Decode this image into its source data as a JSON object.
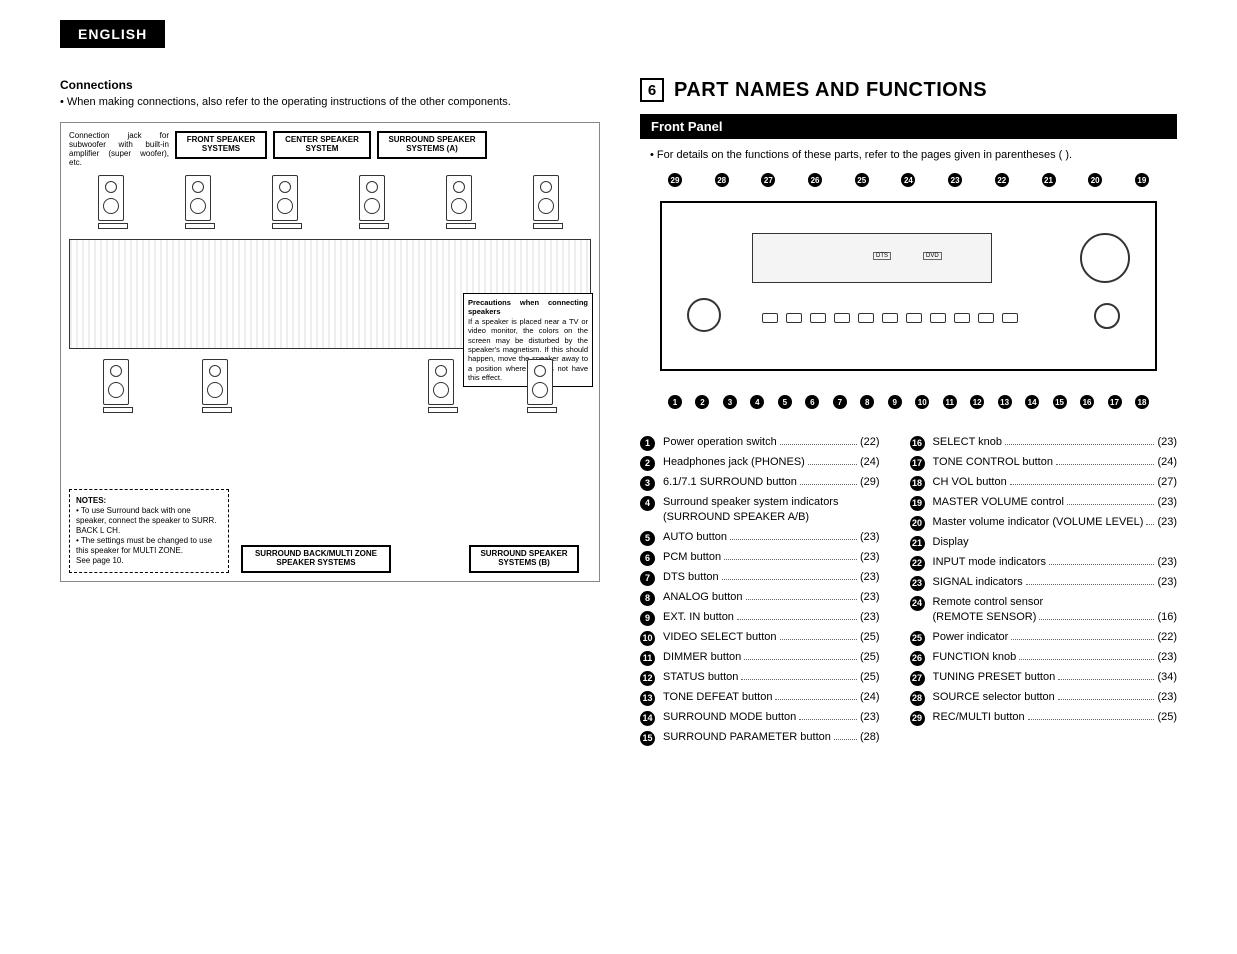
{
  "header": {
    "language": "ENGLISH"
  },
  "left": {
    "title": "Connections",
    "subtitle": "• When making connections, also refer to the operating instructions of the other components.",
    "jack_note": "Connection jack for subwoofer with built-in amplifier (super woofer), etc.",
    "speaker_labels": {
      "front": "FRONT SPEAKER SYSTEMS",
      "center": "CENTER SPEAKER SYSTEM",
      "surround_a": "SURROUND SPEAKER SYSTEMS (A)",
      "surround_back": "SURROUND BACK/MULTI ZONE SPEAKER SYSTEMS",
      "surround_b": "SURROUND SPEAKER SYSTEMS (B)"
    },
    "precautions": {
      "heading": "Precautions when connecting speakers",
      "body": "If a speaker is placed near a TV or video monitor, the colors on the screen may be disturbed by the speaker's magnetism. If this should happen, move the speaker away to a position where it does not have this effect."
    },
    "notes": {
      "heading": "NOTES:",
      "items": [
        "To use Surround back with one speaker, connect the speaker to SURR. BACK L CH.",
        "The settings must be changed to use this speaker for MULTI ZONE.",
        "See page 10."
      ]
    }
  },
  "right": {
    "section_number": "6",
    "section_title": "PART NAMES AND FUNCTIONS",
    "panel_heading": "Front Panel",
    "panel_sub": "• For details on the functions of these parts, refer to the pages given in parentheses ( ).",
    "callouts_top": [
      "29",
      "28",
      "27",
      "26",
      "25",
      "24",
      "23",
      "22",
      "21",
      "20",
      "19"
    ],
    "callouts_bottom": [
      "1",
      "2",
      "3",
      "4",
      "5",
      "6",
      "7",
      "8",
      "9",
      "10",
      "11",
      "12",
      "13",
      "14",
      "15",
      "16",
      "17",
      "18"
    ],
    "parts_left": [
      {
        "n": "1",
        "label": "Power operation switch",
        "page": "(22)"
      },
      {
        "n": "2",
        "label": "Headphones jack (PHONES)",
        "page": "(24)"
      },
      {
        "n": "3",
        "label": "6.1/7.1 SURROUND button",
        "page": "(29)"
      },
      {
        "n": "4",
        "label": "Surround speaker system indicators",
        "sub": "(SURROUND SPEAKER A/B)",
        "page": ""
      },
      {
        "n": "5",
        "label": "AUTO button",
        "page": "(23)"
      },
      {
        "n": "6",
        "label": "PCM button",
        "page": "(23)"
      },
      {
        "n": "7",
        "label": "DTS button",
        "page": "(23)"
      },
      {
        "n": "8",
        "label": "ANALOG button",
        "page": "(23)"
      },
      {
        "n": "9",
        "label": "EXT. IN button",
        "page": "(23)"
      },
      {
        "n": "10",
        "label": "VIDEO SELECT button",
        "page": "(25)"
      },
      {
        "n": "11",
        "label": "DIMMER button",
        "page": "(25)"
      },
      {
        "n": "12",
        "label": "STATUS button",
        "page": "(25)"
      },
      {
        "n": "13",
        "label": "TONE DEFEAT button",
        "page": "(24)"
      },
      {
        "n": "14",
        "label": "SURROUND MODE button",
        "page": "(23)"
      },
      {
        "n": "15",
        "label": "SURROUND PARAMETER button",
        "page": "(28)"
      }
    ],
    "parts_right": [
      {
        "n": "16",
        "label": "SELECT knob",
        "page": "(23)"
      },
      {
        "n": "17",
        "label": "TONE CONTROL button",
        "page": "(24)"
      },
      {
        "n": "18",
        "label": "CH VOL button",
        "page": "(27)"
      },
      {
        "n": "19",
        "label": "MASTER VOLUME control",
        "page": "(23)"
      },
      {
        "n": "20",
        "label": "Master volume indicator (VOLUME LEVEL)",
        "page": "(23)"
      },
      {
        "n": "21",
        "label": "Display",
        "page": ""
      },
      {
        "n": "22",
        "label": "INPUT mode indicators",
        "page": "(23)"
      },
      {
        "n": "23",
        "label": "SIGNAL indicators",
        "page": "(23)"
      },
      {
        "n": "24",
        "label": "Remote control sensor",
        "sub": "(REMOTE SENSOR)",
        "page": "(16)"
      },
      {
        "n": "25",
        "label": "Power indicator",
        "page": "(22)"
      },
      {
        "n": "26",
        "label": "FUNCTION knob",
        "page": "(23)"
      },
      {
        "n": "27",
        "label": "TUNING PRESET button",
        "page": "(34)"
      },
      {
        "n": "28",
        "label": "SOURCE selector button",
        "page": "(23)"
      },
      {
        "n": "29",
        "label": "REC/MULTI button",
        "page": "(25)"
      }
    ]
  },
  "colors": {
    "bg": "#ffffff",
    "ink": "#000000",
    "grid": "#e0e0e0"
  }
}
